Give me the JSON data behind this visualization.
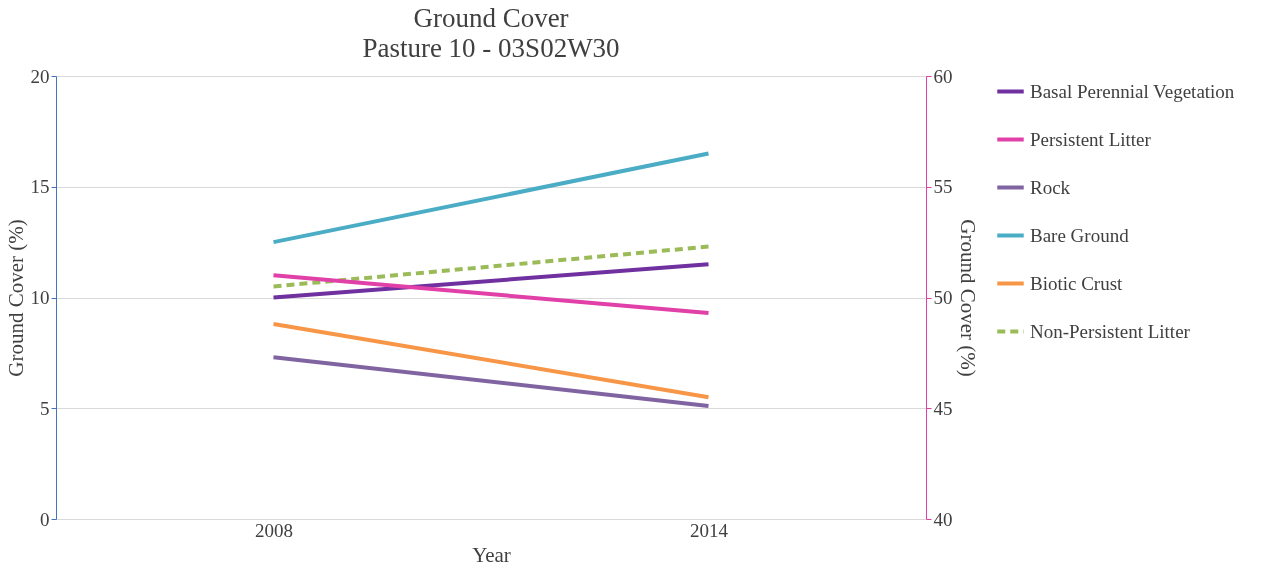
{
  "chart_data": {
    "type": "line",
    "title": "Ground Cover",
    "subtitle": "Pasture 10 - 03S02W30",
    "xlabel": "Year",
    "ylabel": "Ground Cover (%)",
    "y2label": "Ground Cover (%)",
    "categories": [
      "2008",
      "2014"
    ],
    "series": [
      {
        "name": "Basal Perennial Vegetation",
        "color": "#7030a0",
        "values": [
          10,
          11.5
        ]
      },
      {
        "name": "Persistent Litter",
        "color": "#e040a8",
        "values": [
          51,
          49.3
        ],
        "axis": "y2"
      },
      {
        "name": "Rock",
        "color": "#8064a2",
        "values": [
          7.3,
          5.1
        ]
      },
      {
        "name": "Bare Ground",
        "color": "#4bacc6",
        "values": [
          12.5,
          16.5
        ]
      },
      {
        "name": "Biotic Crust",
        "color": "#f79646",
        "values": [
          8.8,
          5.5
        ]
      },
      {
        "name": "Non-Persistent Litter",
        "color": "#9bbb59",
        "values": [
          10.5,
          12.3
        ],
        "line_style": "dashed"
      }
    ],
    "ylim": [
      0,
      20
    ],
    "yticks": [
      0,
      5,
      10,
      15,
      20
    ],
    "y2lim": [
      40,
      60
    ],
    "y2ticks": [
      40,
      45,
      50,
      55,
      60
    ],
    "grid": "y",
    "legend": "right",
    "line_style": "solid"
  }
}
